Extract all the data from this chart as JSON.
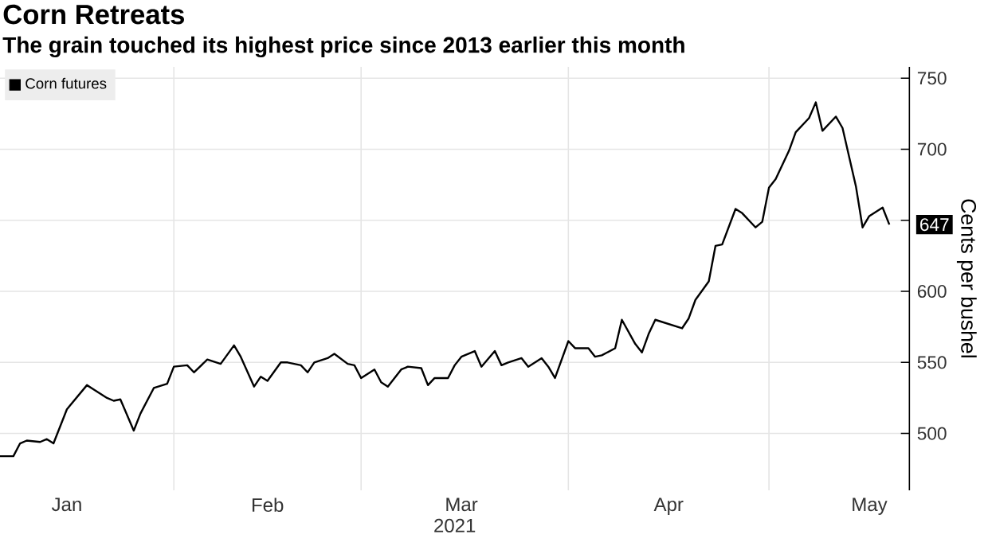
{
  "chart_data": {
    "type": "line",
    "title": "Corn Retreats",
    "subtitle": "The grain touched its highest price since 2013 earlier this month",
    "xlabel": "2021",
    "ylabel": "Cents per bushel",
    "x": [
      "2021-01-06",
      "2021-01-08",
      "2021-01-09",
      "2021-01-10",
      "2021-01-12",
      "2021-01-13",
      "2021-01-14",
      "2021-01-16",
      "2021-01-19",
      "2021-01-20",
      "2021-01-22",
      "2021-01-23",
      "2021-01-24",
      "2021-01-26",
      "2021-01-27",
      "2021-01-29",
      "2021-01-31",
      "2021-02-01",
      "2021-02-03",
      "2021-02-04",
      "2021-02-06",
      "2021-02-08",
      "2021-02-10",
      "2021-02-11",
      "2021-02-13",
      "2021-02-14",
      "2021-02-15",
      "2021-02-17",
      "2021-02-18",
      "2021-02-20",
      "2021-02-21",
      "2021-02-22",
      "2021-02-24",
      "2021-02-25",
      "2021-02-27",
      "2021-02-28",
      "2021-03-01",
      "2021-03-03",
      "2021-03-04",
      "2021-03-05",
      "2021-03-07",
      "2021-03-08",
      "2021-03-10",
      "2021-03-11",
      "2021-03-12",
      "2021-03-14",
      "2021-03-15",
      "2021-03-16",
      "2021-03-18",
      "2021-03-19",
      "2021-03-21",
      "2021-03-22",
      "2021-03-23",
      "2021-03-25",
      "2021-03-26",
      "2021-03-28",
      "2021-03-29",
      "2021-03-30",
      "2021-04-01",
      "2021-04-02",
      "2021-04-04",
      "2021-04-05",
      "2021-04-06",
      "2021-04-08",
      "2021-04-09",
      "2021-04-11",
      "2021-04-12",
      "2021-04-13",
      "2021-04-14",
      "2021-04-18",
      "2021-04-19",
      "2021-04-20",
      "2021-04-22",
      "2021-04-23",
      "2021-04-24",
      "2021-04-26",
      "2021-04-27",
      "2021-04-29",
      "2021-04-30",
      "2021-05-01",
      "2021-05-02",
      "2021-05-04",
      "2021-05-05",
      "2021-05-07",
      "2021-05-08",
      "2021-05-09",
      "2021-05-11",
      "2021-05-12",
      "2021-05-14",
      "2021-05-15",
      "2021-05-16",
      "2021-05-18",
      "2021-05-19"
    ],
    "series": [
      {
        "name": "Corn futures",
        "color": "#000000",
        "values": [
          484,
          484,
          493,
          495,
          494,
          496,
          493,
          517,
          534,
          531,
          525,
          523,
          524,
          502,
          514,
          532,
          535,
          547,
          548,
          543,
          552,
          549,
          562,
          554,
          533,
          540,
          537,
          550,
          550,
          548,
          543,
          550,
          553,
          556,
          549,
          548,
          539,
          545,
          536,
          533,
          545,
          547,
          546,
          534,
          539,
          539,
          548,
          554,
          558,
          547,
          558,
          548,
          550,
          553,
          547,
          553,
          547,
          539,
          565,
          560,
          560,
          554,
          555,
          560,
          580,
          563,
          557,
          570,
          580,
          574,
          581,
          594,
          607,
          632,
          633,
          658,
          655,
          645,
          649,
          673,
          679,
          699,
          712,
          722,
          733,
          713,
          723,
          715,
          674,
          645,
          653,
          659,
          647
        ]
      }
    ],
    "xlim": [
      "2021-01-06",
      "2021-05-22"
    ],
    "xticks": [
      {
        "value": "2021-02-01",
        "label": null
      },
      {
        "value": "2021-03-01",
        "label": null
      },
      {
        "value": "2021-04-01",
        "label": null
      },
      {
        "value": "2021-05-01",
        "label": null
      },
      {
        "value": "2021-01-16",
        "label": "Jan"
      },
      {
        "value": "2021-02-15",
        "label": "Feb"
      },
      {
        "value": "2021-03-16",
        "label": "Mar"
      },
      {
        "value": "2021-04-16",
        "label": "Apr"
      },
      {
        "value": "2021-05-16",
        "label": "May"
      }
    ],
    "ylim": [
      460,
      758
    ],
    "yticks": [
      500,
      550,
      600,
      {
        "value": 650,
        "label": null
      },
      700,
      750
    ],
    "annotations": [
      "647"
    ],
    "grid": true,
    "legend": "top left",
    "marker": "none",
    "line_style": "solid"
  }
}
